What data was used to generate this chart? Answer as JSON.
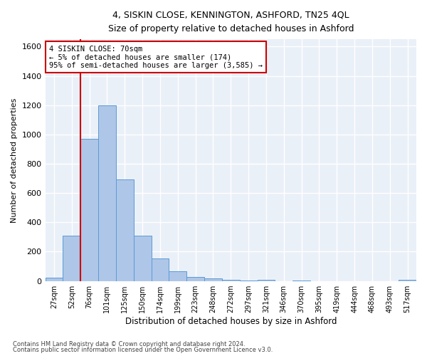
{
  "title1": "4, SISKIN CLOSE, KENNINGTON, ASHFORD, TN25 4QL",
  "title2": "Size of property relative to detached houses in Ashford",
  "xlabel": "Distribution of detached houses by size in Ashford",
  "ylabel": "Number of detached properties",
  "footer1": "Contains HM Land Registry data © Crown copyright and database right 2024.",
  "footer2": "Contains public sector information licensed under the Open Government Licence v3.0.",
  "bar_labels": [
    "27sqm",
    "52sqm",
    "76sqm",
    "101sqm",
    "125sqm",
    "150sqm",
    "174sqm",
    "199sqm",
    "223sqm",
    "248sqm",
    "272sqm",
    "297sqm",
    "321sqm",
    "346sqm",
    "370sqm",
    "395sqm",
    "419sqm",
    "444sqm",
    "468sqm",
    "493sqm",
    "517sqm"
  ],
  "bar_values": [
    20,
    310,
    970,
    1200,
    695,
    310,
    155,
    65,
    25,
    15,
    10,
    5,
    10,
    0,
    5,
    0,
    0,
    0,
    0,
    0,
    10
  ],
  "bar_color": "#aec6e8",
  "bar_edge_color": "#5b9bd5",
  "background_color": "#eaf0f8",
  "grid_color": "#ffffff",
  "property_line_color": "#cc0000",
  "annotation_box_color": "#ffffff",
  "annotation_box_edge": "#cc0000",
  "property_label": "4 SISKIN CLOSE: 70sqm",
  "annotation_line1": "← 5% of detached houses are smaller (174)",
  "annotation_line2": "95% of semi-detached houses are larger (3,585) →",
  "ylim": [
    0,
    1650
  ],
  "yticks": [
    0,
    200,
    400,
    600,
    800,
    1000,
    1200,
    1400,
    1600
  ]
}
